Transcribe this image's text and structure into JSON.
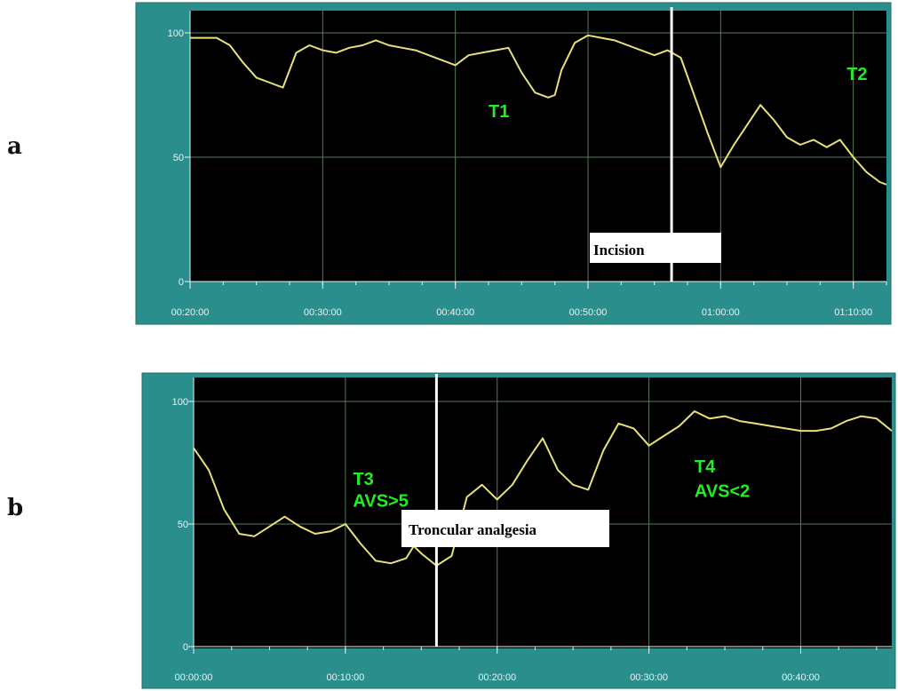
{
  "panels": [
    {
      "letter": "a",
      "chart_data": {
        "type": "line",
        "title": "",
        "xlabel": "",
        "ylabel": "",
        "ylim": [
          0,
          100
        ],
        "xlim_min": [
          20,
          72.5
        ],
        "y_ticks": [
          "100",
          "50",
          "0"
        ],
        "y_tick_values": [
          100,
          50,
          0
        ],
        "x_ticks": [
          "00:20:00",
          "00:30:00",
          "00:40:00",
          "00:50:00",
          "01:00:00",
          "01:10:00"
        ],
        "x_tick_values": [
          20,
          30,
          40,
          50,
          60,
          70
        ],
        "grid": true,
        "colors": {
          "line": "#e8e07a",
          "plot_bg": "#000000",
          "frame": "#2a8f8c",
          "grid": "#5a7a5a",
          "marker_line": "#ffffff"
        },
        "series": [
          {
            "x": [
              20,
              21,
              22,
              23,
              24,
              25,
              25.5,
              26,
              27,
              28,
              29,
              30,
              31,
              32,
              33,
              34,
              35,
              36,
              37,
              38,
              39,
              40,
              41,
              42,
              43,
              44,
              45,
              46,
              47,
              47.5,
              48,
              49,
              50,
              51,
              52,
              53,
              54,
              55,
              56,
              57,
              58,
              59,
              60,
              61,
              62,
              63,
              64,
              65,
              66,
              67,
              68,
              69,
              70,
              71,
              72,
              72.5
            ],
            "y": [
              98,
              98,
              98,
              95,
              88,
              82,
              81,
              80,
              78,
              92,
              95,
              93,
              92,
              94,
              95,
              97,
              95,
              94,
              93,
              91,
              89,
              87,
              91,
              92,
              93,
              94,
              84,
              76,
              74,
              75,
              85,
              96,
              99,
              98,
              97,
              95,
              93,
              91,
              93,
              90,
              75,
              60,
              46,
              55,
              63,
              71,
              65,
              58,
              55,
              57,
              54,
              57,
              50,
              44,
              40,
              39
            ]
          }
        ],
        "vline_x": 56.3,
        "annotations": [
          {
            "text": "T1",
            "x": 42.5,
            "y": 66
          },
          {
            "text": "T2",
            "x": 69.5,
            "y": 81
          }
        ],
        "box_annotation": {
          "text": "Incision"
        }
      }
    },
    {
      "letter": "b",
      "chart_data": {
        "type": "line",
        "title": "",
        "xlabel": "",
        "ylabel": "",
        "ylim": [
          0,
          100
        ],
        "xlim_min": [
          0,
          46
        ],
        "y_ticks": [
          "100",
          "50",
          "0"
        ],
        "y_tick_values": [
          100,
          50,
          0
        ],
        "x_ticks": [
          "00:00:00",
          "00:10:00",
          "00:20:00",
          "00:30:00",
          "00:40:00"
        ],
        "x_tick_values": [
          0,
          10,
          20,
          30,
          40
        ],
        "grid": true,
        "colors": {
          "line": "#e8e07a",
          "plot_bg": "#000000",
          "frame": "#2a8f8c",
          "grid": "#5a7a5a",
          "marker_line": "#ffffff"
        },
        "series": [
          {
            "x": [
              0,
              1,
              2,
              3,
              4,
              5,
              6,
              7,
              8,
              9,
              10,
              11,
              12,
              13,
              14,
              14.5,
              15,
              16,
              17,
              18,
              19,
              20,
              21,
              22,
              23,
              24,
              25,
              26,
              27,
              28,
              29,
              30,
              31,
              32,
              33,
              34,
              35,
              36,
              37,
              38,
              39,
              40,
              41,
              42,
              43,
              44,
              45,
              46
            ],
            "y": [
              81,
              72,
              56,
              46,
              45,
              49,
              53,
              49,
              46,
              47,
              50,
              42,
              35,
              34,
              36,
              41,
              38,
              33,
              37,
              61,
              66,
              60,
              66,
              76,
              85,
              72,
              66,
              64,
              80,
              91,
              89,
              82,
              86,
              90,
              96,
              93,
              94,
              92,
              91,
              90,
              89,
              88,
              88,
              89,
              92,
              94,
              93,
              88
            ]
          }
        ],
        "vline_x": 16,
        "annotations": [
          {
            "text": "T3",
            "x": 10.5,
            "y": 66
          },
          {
            "text": "AVS>5",
            "x": 10.5,
            "y": 57
          },
          {
            "text": "T4",
            "x": 33,
            "y": 71
          },
          {
            "text": "AVS<2",
            "x": 33,
            "y": 61
          }
        ],
        "box_annotation": {
          "text": "Troncular analgesia"
        }
      }
    }
  ]
}
